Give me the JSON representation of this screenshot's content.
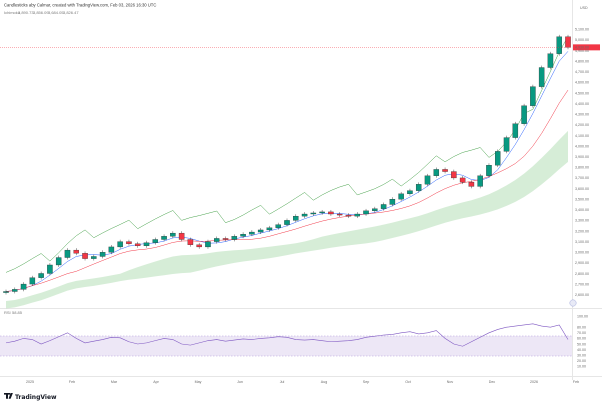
{
  "header": {
    "title": "Candlesticks aby Calmar, created with TradingView.com, Feb 03, 2026 16:30 UTC",
    "indicator_label": "Ichimoku",
    "indicator_values": [
      "3,890.73",
      "3,856.09",
      "3,684.05",
      "3,826.47"
    ],
    "indicator_colors": [
      "#2962ff",
      "#f23645",
      "#089981",
      "#43a047"
    ],
    "currency": "USD"
  },
  "rsi_header": {
    "label": "RSI",
    "value": "58.85"
  },
  "price_axis": {
    "labels": [
      "5,100.00",
      "5,000.00",
      "4,900.00",
      "4,800.00",
      "4,700.00",
      "4,600.00",
      "4,500.00",
      "4,400.00",
      "4,300.00",
      "4,200.00",
      "4,100.00",
      "4,000.00",
      "3,900.00",
      "3,800.00",
      "3,700.00",
      "3,600.00",
      "3,500.00",
      "3,400.00",
      "3,300.00",
      "3,200.00",
      "3,100.00",
      "3,000.00",
      "2,900.00",
      "2,800.00",
      "2,700.00",
      "2,600.00"
    ],
    "last_price_badge": "4,930.00"
  },
  "rsi_axis": {
    "labels": [
      "100.00",
      "80.00",
      "70.00",
      "60.00",
      "50.00",
      "40.00",
      "30.00",
      "20.00",
      "10.00"
    ]
  },
  "time_axis": {
    "labels": [
      "2025",
      "Feb",
      "Mar",
      "Apr",
      "May",
      "Jun",
      "Jul",
      "Aug",
      "Sep",
      "Oct",
      "Nov",
      "Dec",
      "2026",
      "Feb"
    ]
  },
  "brand": {
    "logo_text": "TradingView"
  },
  "colors": {
    "up": "#089981",
    "down": "#f23645",
    "rsi": "#7e57c2",
    "bb": "#43a047",
    "cloud": "#a5d6a7",
    "lastPrice": "#f23645"
  },
  "chart_data": {
    "type": "candlestick",
    "title": "",
    "ylim": [
      2550,
      5150
    ],
    "rsi_ylim": [
      0,
      100
    ],
    "series": [
      {
        "name": "Price",
        "values": [
          2630,
          2650,
          2700,
          2760,
          2800,
          2880,
          2950,
          3020,
          2990,
          2940,
          2960,
          3000,
          3050,
          3100,
          3080,
          3060,
          3090,
          3120,
          3150,
          3180,
          3120,
          3070,
          3050,
          3100,
          3130,
          3120,
          3150,
          3170,
          3190,
          3210,
          3230,
          3260,
          3300,
          3340,
          3360,
          3370,
          3380,
          3360,
          3350,
          3340,
          3360,
          3390,
          3410,
          3450,
          3500,
          3550,
          3580,
          3640,
          3720,
          3780,
          3760,
          3700,
          3660,
          3620,
          3720,
          3820,
          3950,
          4080,
          4210,
          4380,
          4560,
          4740,
          4870,
          5030,
          4930
        ]
      },
      {
        "name": "RSI",
        "values": [
          52,
          55,
          60,
          58,
          50,
          56,
          63,
          70,
          60,
          52,
          55,
          58,
          62,
          61,
          54,
          50,
          52,
          56,
          60,
          58,
          50,
          48,
          52,
          56,
          58,
          55,
          57,
          59,
          58,
          60,
          61,
          63,
          62,
          58,
          57,
          58,
          56,
          54,
          55,
          56,
          58,
          62,
          64,
          66,
          67,
          70,
          72,
          68,
          70,
          74,
          60,
          50,
          46,
          54,
          62,
          70,
          76,
          80,
          82,
          84,
          86,
          82,
          80,
          84,
          58
        ]
      }
    ]
  }
}
